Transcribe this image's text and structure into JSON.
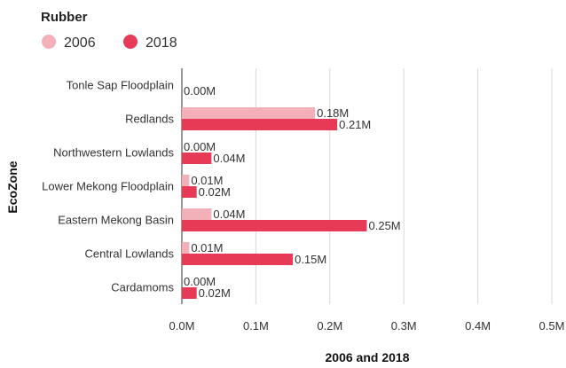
{
  "chart_data": {
    "type": "bar",
    "orientation": "horizontal",
    "legend_title": "Rubber",
    "categories": [
      "Tonle Sap Floodplain",
      "Redlands",
      "Northwestern Lowlands",
      "Lower Mekong Floodplain",
      "Eastern Mekong Basin",
      "Central Lowlands",
      "Cardamoms"
    ],
    "series": [
      {
        "name": "2006",
        "color": "#f4b0b8",
        "values": [
          0.0,
          0.18,
          0.0,
          0.01,
          0.04,
          0.01,
          0.0
        ],
        "labels": [
          "",
          "0.18M",
          "0.00M",
          "0.01M",
          "0.04M",
          "0.01M",
          "0.00M"
        ]
      },
      {
        "name": "2018",
        "color": "#e63a57",
        "values": [
          0.0,
          0.21,
          0.04,
          0.02,
          0.25,
          0.15,
          0.02
        ],
        "labels": [
          "0.00M",
          "0.21M",
          "0.04M",
          "0.02M",
          "0.25M",
          "0.15M",
          "0.02M"
        ]
      }
    ],
    "xlabel": "2006 and 2018",
    "ylabel": "EcoZone",
    "xlim": [
      0,
      0.5
    ],
    "xticks": [
      0,
      0.1,
      0.2,
      0.3,
      0.4,
      0.5
    ],
    "xtick_labels": [
      "0.0M",
      "0.1M",
      "0.2M",
      "0.3M",
      "0.4M",
      "0.5M"
    ],
    "grid": true,
    "legend_position": "top-left"
  }
}
